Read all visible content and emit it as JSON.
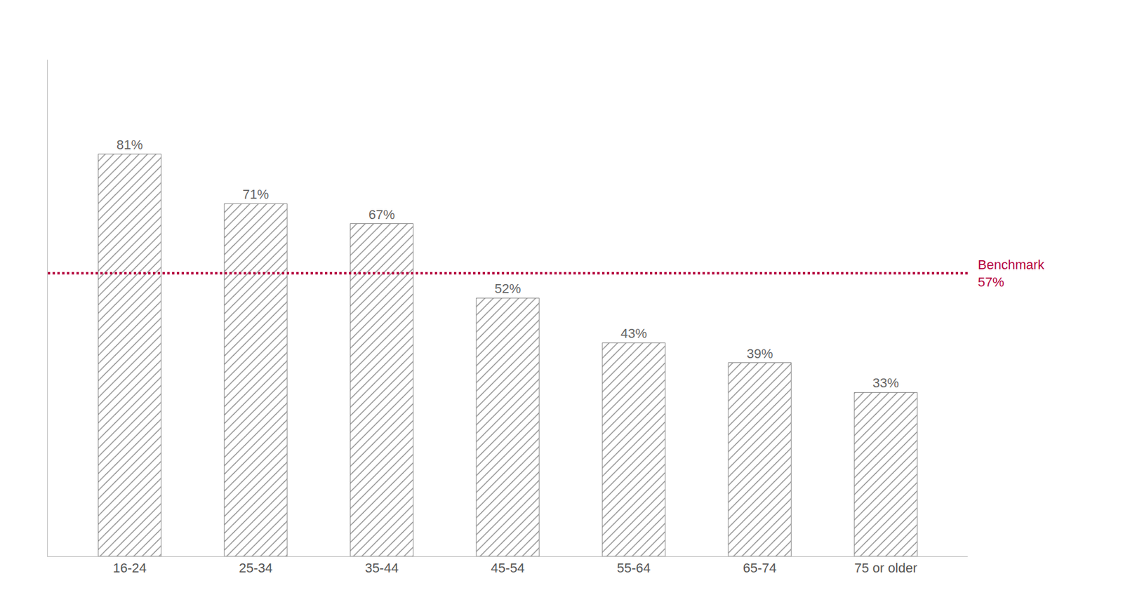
{
  "chart_data": {
    "type": "bar",
    "categories": [
      "16-24",
      "25-34",
      "35-44",
      "45-54",
      "55-64",
      "65-74",
      "75 or older"
    ],
    "values": [
      81,
      71,
      67,
      52,
      43,
      39,
      33
    ],
    "value_labels": [
      "81%",
      "71%",
      "67%",
      "52%",
      "43%",
      "39%",
      "33%"
    ],
    "data_labels": true,
    "color": "#d9d9d9",
    "ylim": [
      0,
      100
    ],
    "grid": false,
    "tick_labels": "x",
    "benchmark": {
      "value": 57,
      "labels": [
        "Benchmark",
        "57%"
      ],
      "color": "#b5003e"
    }
  }
}
